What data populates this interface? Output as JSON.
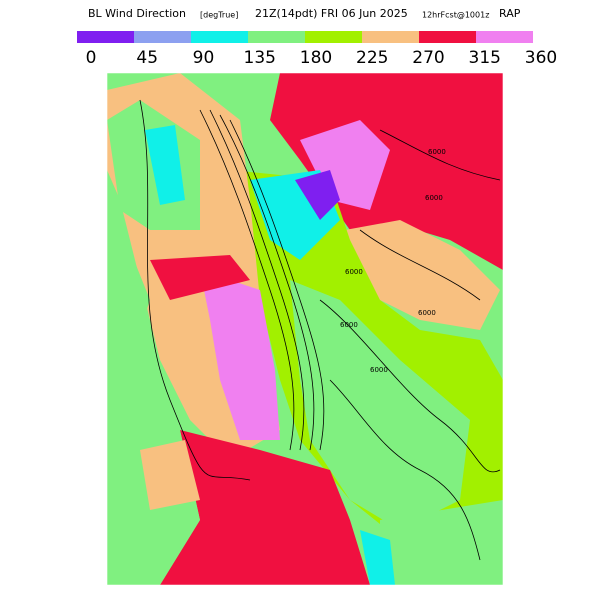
{
  "header": {
    "title": "BL Wind Direction",
    "units": "[degTrue]",
    "time": "21Z(14pdt) FRI 06 Jun 2025",
    "forecast": "12hrFcst@1001z",
    "model": "RAP"
  },
  "colorbar": {
    "colors": [
      "#7f1ff0",
      "#8ca0f0",
      "#10f0e8",
      "#80f080",
      "#a2f000",
      "#f8c080",
      "#f01040",
      "#f080f0"
    ],
    "ticks": [
      0,
      45,
      90,
      135,
      180,
      225,
      270,
      315,
      360
    ]
  },
  "contour_labels": [
    "6000",
    "6000",
    "6000",
    "6000",
    "6000",
    "6000"
  ]
}
